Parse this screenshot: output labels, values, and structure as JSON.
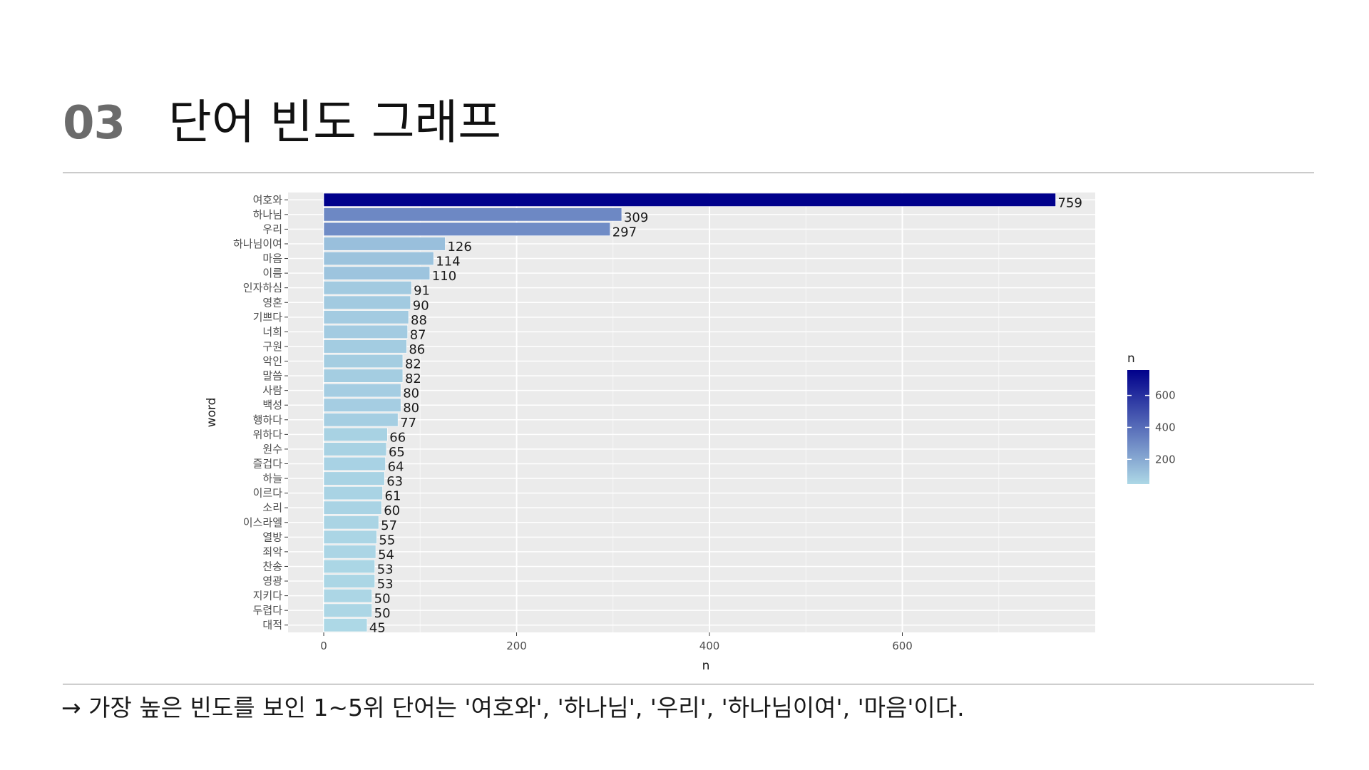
{
  "header": {
    "section_number": "03",
    "title": "단어 빈도 그래프"
  },
  "caption": "→ 가장 높은 빈도를 보인 1~5위 단어는 '여호와', '하나님', '우리', '하나님이여', '마음'이다.",
  "chart_data": {
    "type": "bar",
    "orientation": "horizontal",
    "xlabel": "n",
    "ylabel": "word",
    "xlim": [
      -37,
      800
    ],
    "x_ticks": [
      0,
      200,
      400,
      600
    ],
    "categories": [
      "여호와",
      "하나님",
      "우리",
      "하나님이여",
      "마음",
      "이름",
      "인자하심",
      "영혼",
      "기쁘다",
      "너희",
      "구원",
      "악인",
      "말씀",
      "사람",
      "백성",
      "행하다",
      "위하다",
      "원수",
      "즐겁다",
      "하늘",
      "이르다",
      "소리",
      "이스라엘",
      "열방",
      "죄악",
      "찬송",
      "영광",
      "지키다",
      "두렵다",
      "대적"
    ],
    "values": [
      759,
      309,
      297,
      126,
      114,
      110,
      91,
      90,
      88,
      87,
      86,
      82,
      82,
      80,
      80,
      77,
      66,
      65,
      64,
      63,
      61,
      60,
      57,
      55,
      54,
      53,
      53,
      50,
      50,
      45
    ],
    "legend": {
      "title": "n",
      "placement": "right",
      "ticks": [
        200,
        400,
        600
      ],
      "low_color": "#ADD8E6",
      "high_color": "#00008B",
      "range": [
        45,
        759
      ]
    },
    "grid": true,
    "panel_background": "#EBEBEB"
  }
}
